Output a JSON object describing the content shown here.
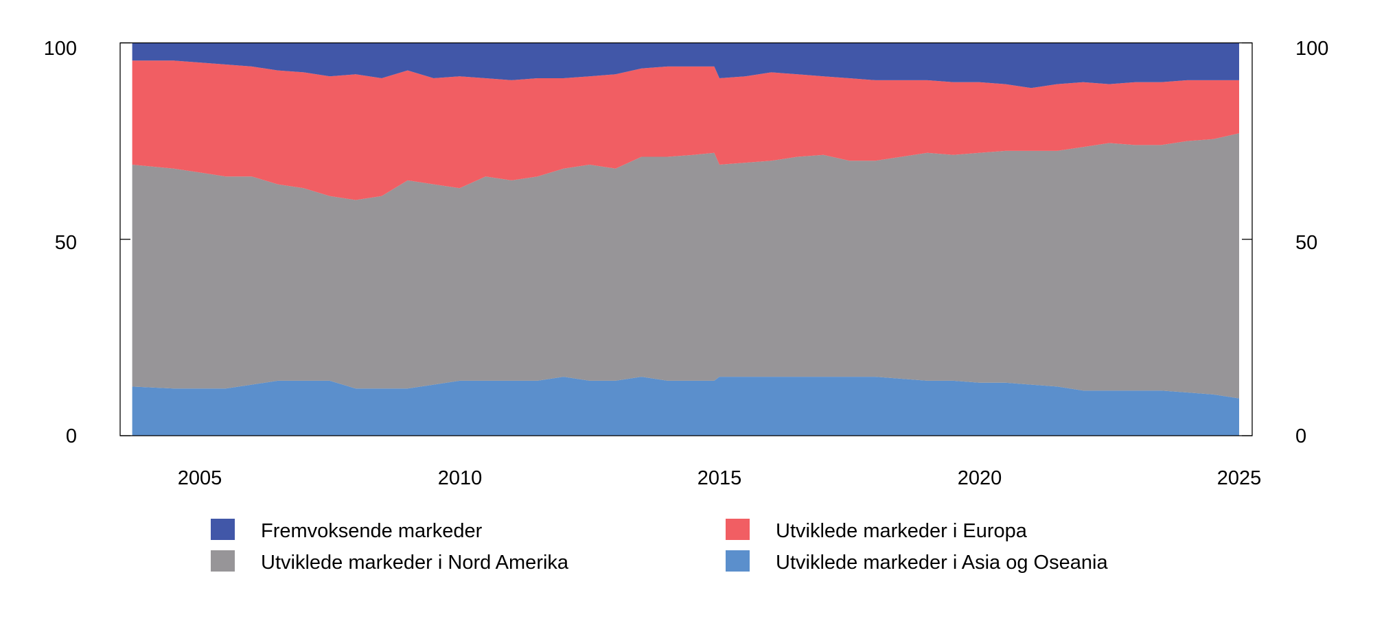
{
  "chart_data": {
    "type": "area",
    "stacked": true,
    "title": "",
    "xlabel": "",
    "ylabel": "",
    "ylim": [
      0,
      100
    ],
    "xlim": [
      2003.7,
      2025.0
    ],
    "y_ticks": [
      "0",
      "50",
      "100"
    ],
    "x_ticks": [
      "2005",
      "2010",
      "2015",
      "2020",
      "2025"
    ],
    "grid": false,
    "legend_position": "bottom",
    "x": [
      2003.7,
      2004.5,
      2005.0,
      2005.5,
      2006.0,
      2006.5,
      2007.0,
      2007.5,
      2008.0,
      2008.5,
      2009.0,
      2009.5,
      2010.0,
      2010.5,
      2011.0,
      2011.5,
      2012.0,
      2012.5,
      2013.0,
      2013.5,
      2014.0,
      2014.5,
      2014.9,
      2015.0,
      2015.5,
      2016.0,
      2016.5,
      2017.0,
      2017.5,
      2018.0,
      2018.5,
      2019.0,
      2019.5,
      2020.0,
      2020.5,
      2021.0,
      2021.5,
      2022.0,
      2022.5,
      2023.0,
      2023.5,
      2024.0,
      2024.5,
      2025.0
    ],
    "series": [
      {
        "name": "Utviklede markeder i Asia og Oseania",
        "color": "#5b8fcc",
        "values": [
          12.5,
          12,
          12,
          12,
          13,
          14,
          14,
          14,
          12,
          12,
          12,
          13,
          14,
          14,
          14,
          14,
          15,
          14,
          14,
          15,
          14,
          14,
          14,
          15,
          15,
          15,
          15,
          15,
          15,
          15,
          14.5,
          14,
          14,
          13.5,
          13.5,
          13,
          12.5,
          11.5,
          11.5,
          11.5,
          11.5,
          11,
          10.5,
          9.5
        ]
      },
      {
        "name": "Utviklede markeder i Nord Amerika",
        "color": "#979598",
        "values": [
          56.5,
          56,
          55,
          54,
          53,
          50,
          49,
          47,
          48,
          49,
          53,
          51,
          49,
          52,
          51,
          52,
          53,
          55,
          54,
          56,
          57,
          57.5,
          58,
          54,
          54.5,
          55,
          56,
          56.5,
          55,
          55,
          56.5,
          58,
          57.5,
          58.5,
          59,
          59.5,
          60,
          62,
          63,
          62.5,
          62.5,
          64,
          65,
          67.5
        ]
      },
      {
        "name": "Utviklede markeder i Europa",
        "color": "#f15e63",
        "values": [
          26.5,
          27.5,
          28,
          28.5,
          28,
          29,
          29.5,
          30.5,
          32,
          30,
          28,
          27,
          28.5,
          25,
          25.5,
          25,
          23,
          22.5,
          24,
          22.5,
          23,
          22.5,
          22,
          22,
          22,
          22.5,
          21,
          20,
          21,
          20.5,
          19.5,
          18.5,
          18.5,
          18,
          17,
          16,
          17,
          16.5,
          15,
          16,
          16,
          15.5,
          15,
          13.5
        ]
      },
      {
        "name": "Fremvoksende markeder",
        "color": "#4157a8",
        "values": [
          4.5,
          4.5,
          5,
          5.5,
          6,
          7,
          7.5,
          8.5,
          8,
          9,
          7,
          9,
          8.5,
          9,
          9.5,
          9,
          9,
          8.5,
          8,
          6.5,
          6,
          6,
          6,
          9,
          8.5,
          7.5,
          8,
          8.5,
          9,
          9.5,
          9.5,
          9.5,
          10,
          10,
          10.5,
          11.5,
          10.5,
          10,
          10.5,
          10,
          10,
          9.5,
          9.5,
          9.5
        ]
      }
    ],
    "legend": [
      {
        "label": "Fremvoksende markeder",
        "color": "#4157a8"
      },
      {
        "label": "Utviklede markeder i Europa",
        "color": "#f15e63"
      },
      {
        "label": "Utviklede markeder i Nord Amerika",
        "color": "#979598"
      },
      {
        "label": "Utviklede markeder i Asia og Oseania",
        "color": "#5b8fcc"
      }
    ]
  }
}
